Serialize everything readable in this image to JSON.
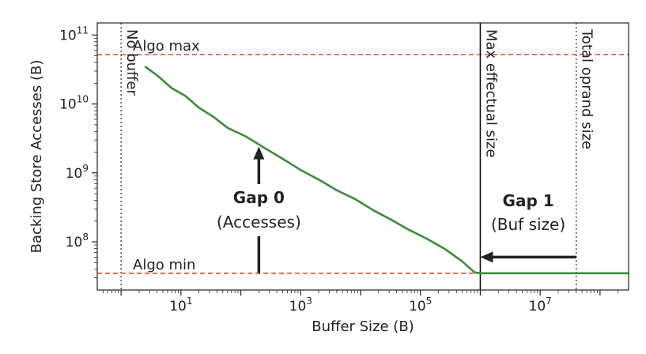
{
  "chart_data": {
    "type": "line",
    "xlabel": "Buffer Size (B)",
    "ylabel": "Backing Store Accesses (B)",
    "x_scale": "log",
    "y_scale": "log",
    "xlim": [
      0.4,
      300000000
    ],
    "ylim": [
      20000000,
      150000000000
    ],
    "x_ticks": [
      {
        "value": 10,
        "base": "10",
        "exp": "1"
      },
      {
        "value": 1000,
        "base": "10",
        "exp": "3"
      },
      {
        "value": 100000,
        "base": "10",
        "exp": "5"
      },
      {
        "value": 10000000,
        "base": "10",
        "exp": "7"
      }
    ],
    "y_ticks": [
      {
        "value": 100000000,
        "base": "10",
        "exp": "8"
      },
      {
        "value": 1000000000,
        "base": "10",
        "exp": "9"
      },
      {
        "value": 10000000000,
        "base": "10",
        "exp": "10"
      },
      {
        "value": 100000000000,
        "base": "10",
        "exp": "11"
      }
    ],
    "grid": false,
    "series": [
      {
        "color": "#3e8a3e",
        "points": [
          [
            2.5,
            35000000000
          ],
          [
            4,
            26000000000
          ],
          [
            7,
            17000000000
          ],
          [
            12,
            13000000000
          ],
          [
            20,
            8800000000
          ],
          [
            35,
            6500000000
          ],
          [
            60,
            4500000000
          ],
          [
            120,
            3400000000
          ],
          [
            250,
            2300000000
          ],
          [
            500,
            1600000000
          ],
          [
            1000,
            1100000000
          ],
          [
            2000,
            800000000
          ],
          [
            4000,
            560000000
          ],
          [
            8000,
            420000000
          ],
          [
            16000,
            290000000
          ],
          [
            32000,
            210000000
          ],
          [
            64000,
            150000000
          ],
          [
            130000,
            110000000
          ],
          [
            260000,
            78000000
          ],
          [
            500000,
            52000000
          ],
          [
            800000,
            36000000
          ],
          [
            1000000,
            35000000
          ],
          [
            300000000,
            35000000
          ]
        ]
      }
    ],
    "reference_lines": {
      "algo_max": {
        "label": "Algo max",
        "y": 52000000000,
        "color": "#e8472f"
      },
      "algo_min": {
        "label": "Algo min",
        "y": 35000000,
        "color": "#e8472f"
      },
      "no_buffer": {
        "label": "No buffer",
        "x": 1
      },
      "max_effectual": {
        "label": "Max effectual size",
        "x": 1000000
      },
      "total_oprand": {
        "label": "Total oprand size",
        "x": 40000000
      }
    },
    "annotations": {
      "gap0": {
        "title": "Gap 0",
        "subtitle": "(Accesses)",
        "x": 200,
        "y_from": 35000000,
        "y_to": 2400000000
      },
      "gap1": {
        "title": "Gap 1",
        "subtitle": "(Buf size)",
        "y": 60000000,
        "x_from": 40000000,
        "x_to": 1000000
      }
    }
  }
}
